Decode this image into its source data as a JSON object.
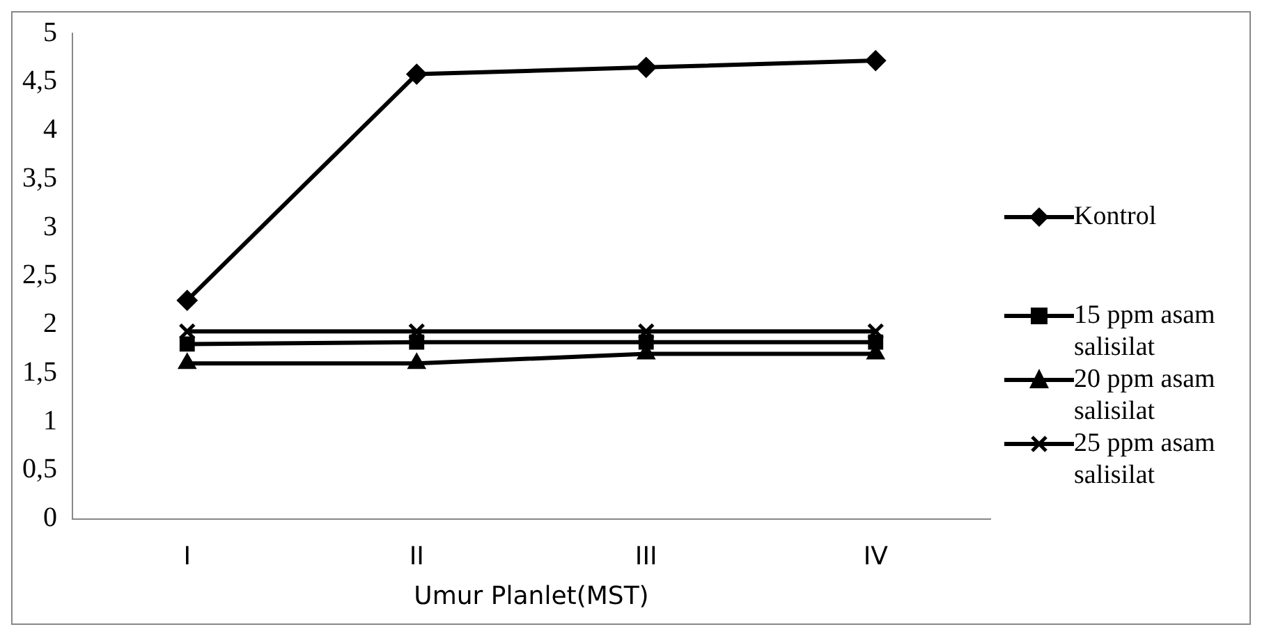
{
  "chart_data": {
    "type": "line",
    "xlabel": "Umur Planlet(MST)",
    "categories": [
      "I",
      "II",
      "III",
      "IV"
    ],
    "series": [
      {
        "name": "Kontrol",
        "color": "#000000",
        "marker": "diamond",
        "values": [
          2.25,
          4.58,
          4.65,
          4.72
        ]
      },
      {
        "name": "15 ppm asam salisilat",
        "color": "#000000",
        "marker": "square",
        "values": [
          1.8,
          1.82,
          1.82,
          1.82
        ]
      },
      {
        "name": "20 ppm asam salisilat",
        "color": "#000000",
        "marker": "triangle",
        "values": [
          1.6,
          1.6,
          1.7,
          1.7
        ]
      },
      {
        "name": "25 ppm asam salisilat",
        "color": "#000000",
        "marker": "cross",
        "values": [
          1.93,
          1.93,
          1.93,
          1.93
        ]
      }
    ],
    "ylim": [
      0,
      5
    ],
    "yticks": [
      0,
      {
        "value": 0.5,
        "label": "0,5"
      },
      1,
      {
        "value": 1.5,
        "label": "1,5"
      },
      2,
      {
        "value": 2.5,
        "label": "2,5"
      },
      3,
      {
        "value": 3.5,
        "label": "3,5"
      },
      4,
      {
        "value": 4.5,
        "label": "4,5"
      },
      5
    ],
    "grid": false,
    "legend": "right",
    "line_style": "solid"
  }
}
